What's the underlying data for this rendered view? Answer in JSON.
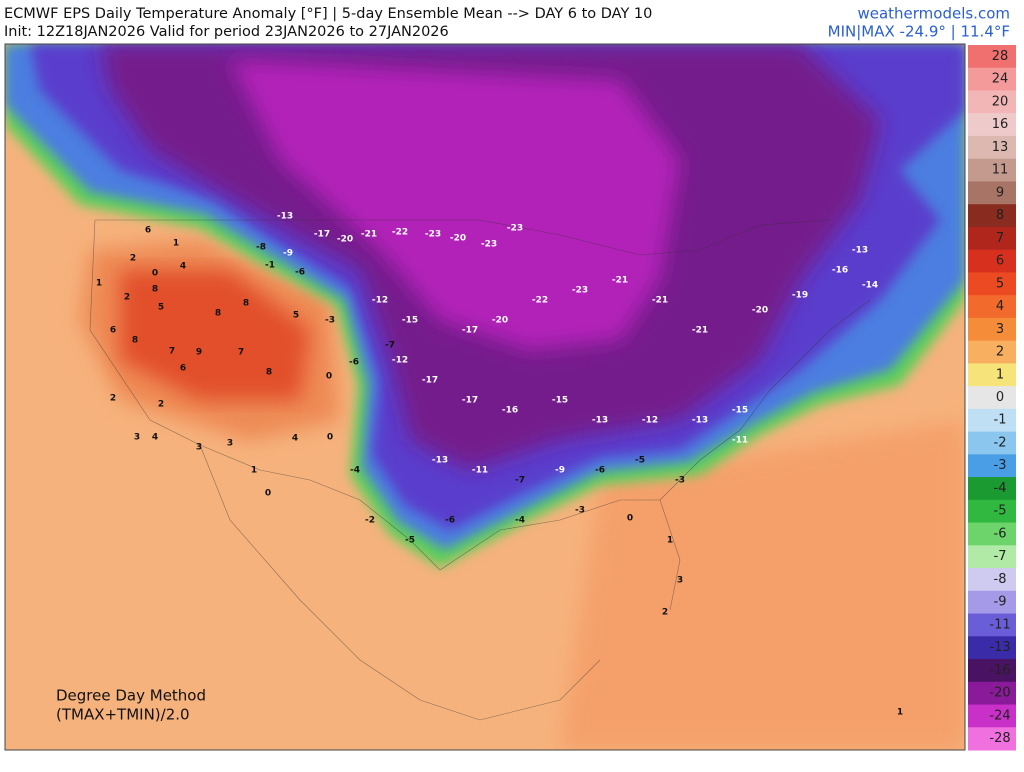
{
  "header": {
    "title": "ECMWF EPS Daily Temperature Anomaly [°F] | 5-day Ensemble Mean --> DAY 6 to DAY 10",
    "subtitle": "Init: 12Z18JAN2026 Valid for period 23JAN2026 to 27JAN2026",
    "site": "weathermodels.com",
    "minmax": "MIN|MAX -24.9° | 11.4°F"
  },
  "note": [
    "Degree Day Method",
    "(TMAX+TMIN)/2.0"
  ],
  "colorbar": {
    "levels": [
      28,
      24,
      20,
      16,
      13,
      11,
      9,
      8,
      7,
      6,
      5,
      4,
      3,
      2,
      1,
      0,
      -1,
      -2,
      -3,
      -4,
      -5,
      -6,
      -7,
      -8,
      -9,
      -11,
      -13,
      -16,
      -20,
      -24,
      -28
    ],
    "colors": [
      "#f07070",
      "#f49a9a",
      "#f3b6b6",
      "#eecaca",
      "#dcb8b0",
      "#c49a8e",
      "#a87466",
      "#8a2b20",
      "#b0251c",
      "#d8301e",
      "#ec4a22",
      "#f26a2c",
      "#f58c3a",
      "#f8b060",
      "#f6e47a",
      "#e6e6e6",
      "#bfe0f4",
      "#8ac6ee",
      "#4a9ee6",
      "#1a9a30",
      "#30b840",
      "#6cd46a",
      "#b0eaa6",
      "#cfcaf0",
      "#a59ae8",
      "#6a5ed8",
      "#3a2ca8",
      "#4a1262",
      "#8a1a9a",
      "#c830c8",
      "#f070e0"
    ]
  },
  "stations": [
    6,
    1,
    2,
    0,
    1,
    2,
    8,
    4,
    5,
    8,
    8,
    6,
    8,
    7,
    9,
    7,
    8,
    6,
    2,
    2,
    3,
    4,
    3,
    3,
    1,
    0,
    4,
    0,
    0,
    5,
    -1,
    -6,
    -8,
    -9,
    -13,
    -17,
    -20,
    -21,
    -22,
    -23,
    -20,
    -23,
    -23,
    -12,
    -15,
    -17,
    -20,
    -22,
    -23,
    -21,
    -21,
    -21,
    -20,
    -19,
    -16,
    -13,
    -14,
    -12,
    -17,
    -17,
    -16,
    -15,
    -13,
    -12,
    -13,
    -15,
    -11,
    -13,
    -11,
    -7,
    -9,
    -6,
    -5,
    -3,
    -4,
    -2,
    -5,
    -6,
    -4,
    -3,
    0,
    1,
    3,
    2,
    1,
    -6,
    -7,
    -3
  ]
}
